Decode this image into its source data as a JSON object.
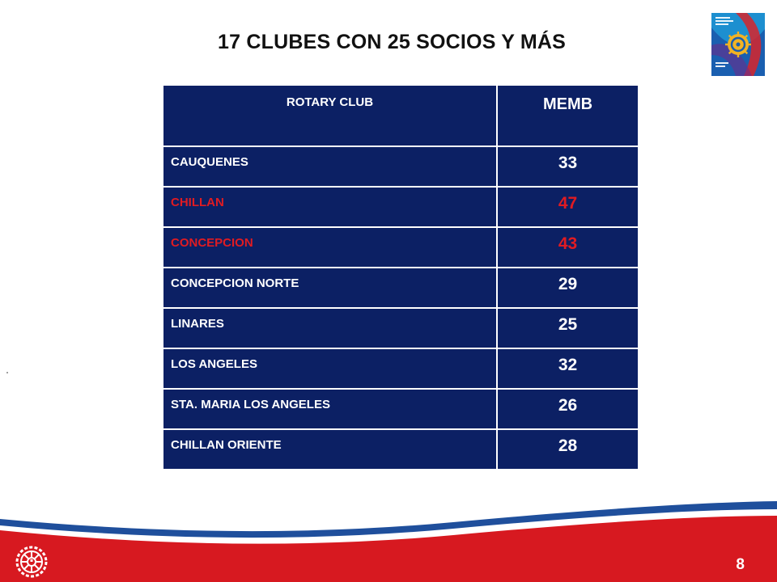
{
  "title": "17 CLUBES CON 25 SOCIOS Y MÁS",
  "table": {
    "header_club": "ROTARY CLUB",
    "header_memb": "MEMB",
    "rows": [
      {
        "club": "CAUQUENES",
        "memb": "33",
        "highlight": false
      },
      {
        "club": "CHILLAN",
        "memb": "47",
        "highlight": true
      },
      {
        "club": "CONCEPCION",
        "memb": "43",
        "highlight": true
      },
      {
        "club": "CONCEPCION NORTE",
        "memb": "29",
        "highlight": false
      },
      {
        "club": "LINARES",
        "memb": "25",
        "highlight": false
      },
      {
        "club": "LOS ANGELES",
        "memb": "32",
        "highlight": false
      },
      {
        "club": "STA. MARIA LOS ANGELES",
        "memb": "26",
        "highlight": false
      },
      {
        "club": "CHILLAN ORIENTE",
        "memb": "28",
        "highlight": false
      }
    ]
  },
  "page_number": "8",
  "icons": {
    "logo": "rotary-theme-logo",
    "footer": "rotary-wheel-icon"
  },
  "colors": {
    "navy": "#0c2064",
    "red": "#e01b22",
    "footer_red": "#d71920",
    "footer_blue": "#1f4f9c"
  }
}
